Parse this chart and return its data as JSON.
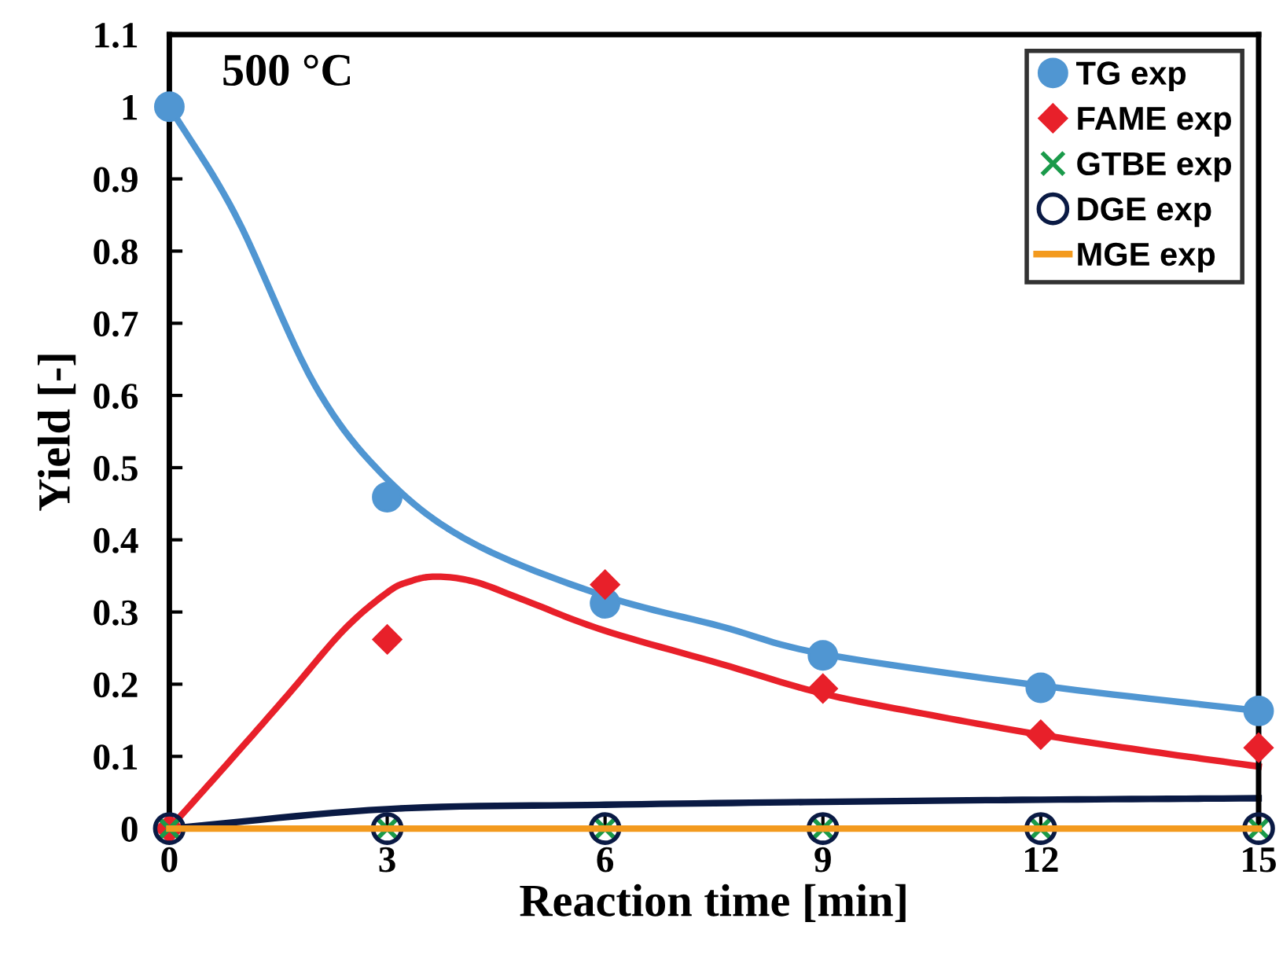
{
  "chart_data": {
    "type": "scatter",
    "xlabel": "Reaction time [min]",
    "ylabel": "Yield [-]",
    "annotations": [
      "500 °C"
    ],
    "xlim": [
      0,
      15
    ],
    "xticks": [
      0,
      3,
      6,
      9,
      12,
      15
    ],
    "ylim": [
      0,
      1.1
    ],
    "yticks": [
      0,
      0.1,
      0.2,
      0.3,
      0.4,
      0.5,
      0.6,
      0.7,
      0.8,
      0.9,
      1,
      1.1
    ],
    "grid": false,
    "legend": "top right",
    "series": [
      {
        "type": "line",
        "color": "#5096d2",
        "marker": "none",
        "x": [
          0,
          0.91,
          2.0,
          3.0,
          4.17,
          5.97,
          7.6,
          9,
          12,
          15
        ],
        "values": [
          1,
          0.85,
          0.615,
          0.484,
          0.396,
          0.323,
          0.28,
          0.242,
          0.198,
          0.163
        ]
      },
      {
        "type": "line",
        "color": "#e8202a",
        "marker": "none",
        "x": [
          0,
          0.8,
          1.63,
          2.4,
          3.0,
          3.3,
          3.66,
          4.2,
          4.9,
          5.97,
          7.6,
          9,
          10.5,
          12,
          13.5,
          15
        ],
        "values": [
          0,
          0.09,
          0.185,
          0.275,
          0.327,
          0.342,
          0.349,
          0.342,
          0.316,
          0.275,
          0.228,
          0.187,
          0.157,
          0.13,
          0.107,
          0.086
        ]
      },
      {
        "type": "line",
        "color": "#0a1a44",
        "marker": "none",
        "x": [
          0,
          3,
          6,
          9,
          12,
          15
        ],
        "values": [
          0,
          0.027,
          0.033,
          0.037,
          0.04,
          0.042
        ]
      },
      {
        "name": "TG exp",
        "color": "#5096d2",
        "marker": "circle",
        "x": [
          0,
          3,
          6,
          9,
          12,
          15
        ],
        "values": [
          1,
          0.459,
          0.312,
          0.24,
          0.195,
          0.163
        ]
      },
      {
        "name": "FAME exp",
        "color": "#e8202a",
        "marker": "diamond",
        "x": [
          0,
          3,
          6,
          9,
          12,
          15
        ],
        "values": [
          0,
          0.262,
          0.338,
          0.194,
          0.13,
          0.112
        ]
      },
      {
        "name": "GTBE exp",
        "color": "#1a9a4a",
        "marker": "cross",
        "x": [
          0,
          3,
          6,
          9,
          12,
          15
        ],
        "values": [
          0,
          0,
          0,
          0,
          0,
          0
        ]
      },
      {
        "name": "DGE exp",
        "color": "#0a1a44",
        "marker": "hollow circle",
        "x": [
          0,
          3,
          6,
          9,
          12,
          15
        ],
        "values": [
          0,
          0,
          0,
          0,
          0,
          0
        ]
      },
      {
        "name": "MGE exp",
        "type": "line",
        "color": "#f39a1e",
        "marker": "none",
        "x": [
          0,
          3,
          6,
          9,
          12,
          15
        ],
        "values": [
          0,
          0,
          0,
          0,
          0,
          0
        ]
      }
    ]
  }
}
